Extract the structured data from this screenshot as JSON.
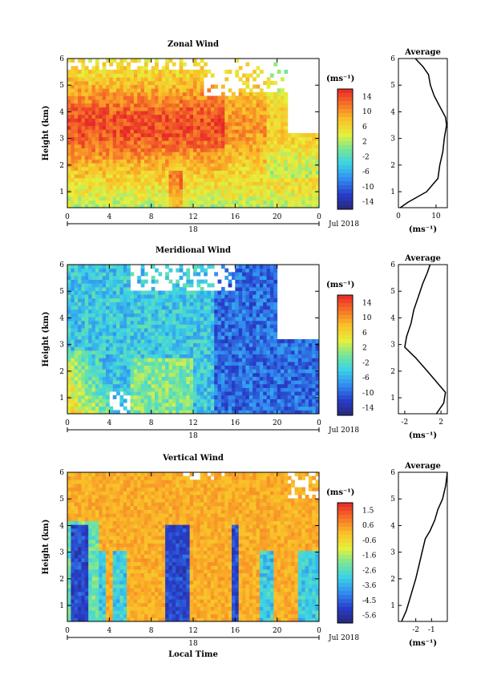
{
  "chart_data": [
    {
      "type": "heatmap",
      "title": "Zonal Wind",
      "xlabel": "",
      "ylabel": "Height (km)",
      "xlim": [
        0,
        24
      ],
      "ylim": [
        0.4,
        6
      ],
      "xticks": [
        "0",
        "4",
        "8",
        "12",
        "16",
        "20",
        "0"
      ],
      "yticks": [
        "1",
        "2",
        "3",
        "4",
        "5",
        "6"
      ],
      "date_label": "18",
      "month_label": "Jul 2018",
      "colorbar": {
        "unit": "(ms⁻¹)",
        "range": [
          -15,
          15
        ],
        "ticks": [
          "14",
          "10",
          "6",
          "2",
          "-2",
          "-6",
          "-10",
          "-14"
        ]
      },
      "profile": {
        "title": "Average",
        "xlabel": "(ms⁻¹)",
        "xlim": [
          0,
          13
        ],
        "xticks": [
          "0",
          "10"
        ],
        "yticks": [
          "1",
          "2",
          "3",
          "4",
          "5",
          "6"
        ],
        "heights": [
          0.4,
          0.6,
          1.0,
          1.5,
          2.0,
          2.5,
          3.0,
          3.5,
          3.8,
          4.2,
          4.6,
          5.0,
          5.4,
          5.7,
          6.0
        ],
        "values": [
          0.5,
          2.5,
          7.5,
          10.5,
          11.0,
          11.8,
          12.2,
          12.8,
          12.5,
          11.0,
          9.5,
          8.5,
          8.0,
          6.5,
          4.5
        ]
      }
    },
    {
      "type": "heatmap",
      "title": "Meridional Wind",
      "xlabel": "",
      "ylabel": "Height (km)",
      "xlim": [
        0,
        24
      ],
      "ylim": [
        0.4,
        6
      ],
      "xticks": [
        "0",
        "4",
        "8",
        "12",
        "16",
        "20",
        "0"
      ],
      "yticks": [
        "1",
        "2",
        "3",
        "4",
        "5",
        "6"
      ],
      "date_label": "18",
      "month_label": "Jul 2018",
      "colorbar": {
        "unit": "(ms⁻¹)",
        "range": [
          -15,
          15
        ],
        "ticks": [
          "14",
          "10",
          "6",
          "2",
          "-2",
          "-6",
          "-10",
          "-14"
        ]
      },
      "profile": {
        "title": "Average",
        "xlabel": "(ms⁻¹)",
        "xlim": [
          -2.7,
          2.7
        ],
        "xticks": [
          "-2",
          "2"
        ],
        "yticks": [
          "1",
          "2",
          "3",
          "4",
          "5",
          "6"
        ],
        "heights": [
          0.4,
          0.8,
          1.2,
          1.6,
          2.0,
          2.5,
          2.9,
          3.3,
          3.8,
          4.3,
          4.8,
          5.3,
          5.7,
          6.0
        ],
        "values": [
          1.5,
          2.3,
          2.5,
          1.5,
          0.5,
          -0.8,
          -2.0,
          -1.8,
          -1.3,
          -1.0,
          -0.5,
          0.0,
          0.5,
          0.8
        ]
      }
    },
    {
      "type": "heatmap",
      "title": "Vertical Wind",
      "xlabel": "Local Time",
      "ylabel": "Height (km)",
      "xlim": [
        0,
        24
      ],
      "ylim": [
        0.4,
        6
      ],
      "xticks": [
        "0",
        "4",
        "8",
        "12",
        "16",
        "20",
        "0"
      ],
      "yticks": [
        "1",
        "2",
        "3",
        "4",
        "5",
        "6"
      ],
      "date_label": "18",
      "month_label": "Jul 2018",
      "colorbar": {
        "unit": "(ms⁻¹)",
        "range": [
          -6,
          2
        ],
        "ticks": [
          "1.5",
          "0.6",
          "-0.6",
          "-1.6",
          "-2.6",
          "-3.6",
          "-4.5",
          "-5.6"
        ]
      },
      "profile": {
        "title": "Average",
        "xlabel": "(ms⁻¹)",
        "xlim": [
          -3.1,
          0
        ],
        "xticks": [
          "-2",
          "-1"
        ],
        "yticks": [
          "1",
          "2",
          "3",
          "4",
          "5",
          "6"
        ],
        "heights": [
          0.4,
          0.8,
          1.2,
          1.6,
          2.0,
          2.5,
          3.0,
          3.5,
          3.8,
          4.2,
          4.6,
          5.0,
          5.5,
          6.0
        ],
        "values": [
          -2.9,
          -2.6,
          -2.4,
          -2.2,
          -2.0,
          -1.8,
          -1.6,
          -1.4,
          -1.1,
          -0.8,
          -0.6,
          -0.3,
          -0.1,
          0.0
        ]
      }
    }
  ]
}
